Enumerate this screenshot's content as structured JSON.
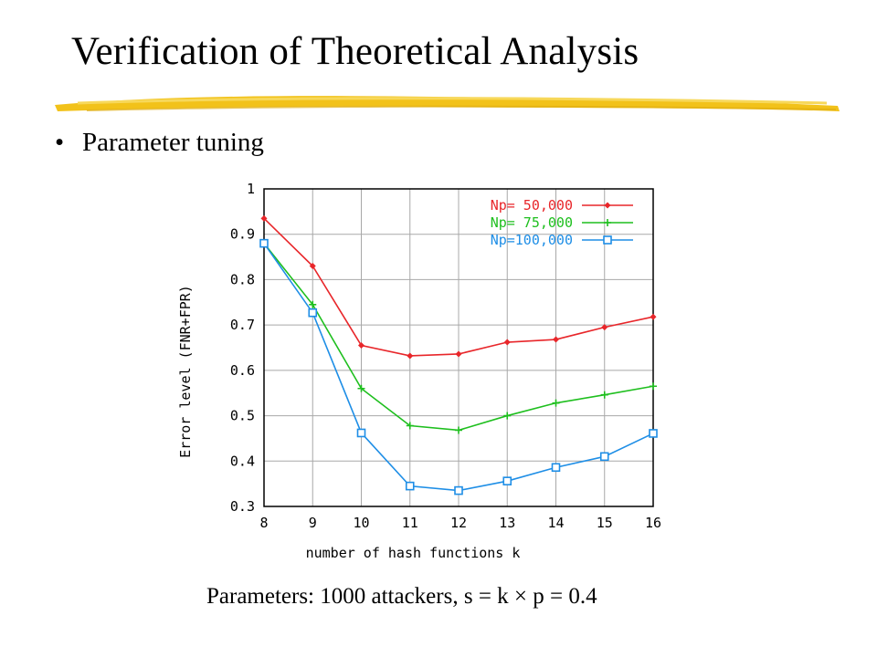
{
  "slide": {
    "title": "Verification of Theoretical Analysis",
    "bullet": "Parameter tuning",
    "bullet_marker": "•",
    "caption": "Parameters: 1000 attackers, s = k × p = 0.4",
    "underline_color": "#f2c21a"
  },
  "chart_data": {
    "type": "line",
    "title": "",
    "xlabel": "number of hash functions k",
    "ylabel": "Error level (FNR+FPR)",
    "x": [
      8,
      9,
      10,
      11,
      12,
      13,
      14,
      15,
      16
    ],
    "xlim": [
      8,
      16
    ],
    "ylim": [
      0.3,
      1.0
    ],
    "x_ticks": [
      "8",
      "9",
      "10",
      "11",
      "12",
      "13",
      "14",
      "15",
      "16"
    ],
    "y_ticks": [
      "0.3",
      "0.4",
      "0.5",
      "0.6",
      "0.7",
      "0.8",
      "0.9",
      "1"
    ],
    "grid": true,
    "legend_position": "top-right",
    "series": [
      {
        "name": "Np=  50,000",
        "color": "#e8262a",
        "marker": "diamond",
        "values": [
          0.935,
          0.83,
          0.655,
          0.632,
          0.636,
          0.662,
          0.668,
          0.695,
          0.718
        ]
      },
      {
        "name": "Np=  75,000",
        "color": "#1ebf1e",
        "marker": "plus",
        "values": [
          0.88,
          0.745,
          0.56,
          0.478,
          0.468,
          0.5,
          0.528,
          0.546,
          0.565
        ]
      },
      {
        "name": "Np=100,000",
        "color": "#1e8ee6",
        "marker": "square",
        "values": [
          0.88,
          0.727,
          0.462,
          0.345,
          0.335,
          0.356,
          0.386,
          0.41,
          0.461
        ]
      }
    ]
  }
}
